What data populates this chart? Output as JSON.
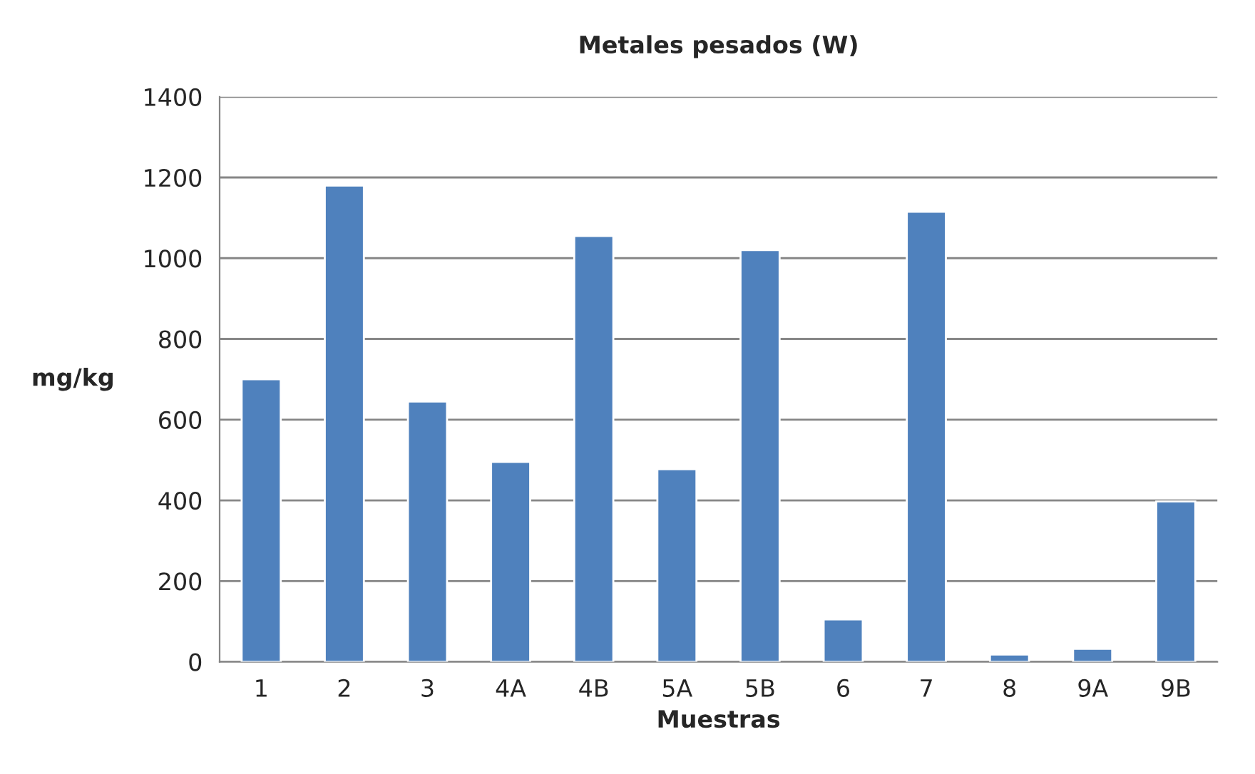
{
  "chart_data": {
    "type": "bar",
    "title": "Metales pesados (W)",
    "xlabel": "Muestras",
    "ylabel": "mg/kg",
    "categories": [
      "1",
      "2",
      "3",
      "4A",
      "4B",
      "5A",
      "5B",
      "6",
      "7",
      "8",
      "9A",
      "9B"
    ],
    "values": [
      700,
      1180,
      645,
      495,
      1055,
      477,
      1020,
      105,
      1115,
      18,
      32,
      397
    ],
    "color": "#4f81bd",
    "ylim": [
      0,
      1400
    ],
    "yticks": [
      0,
      200,
      400,
      600,
      800,
      1000,
      1200,
      1400
    ],
    "grid": "y",
    "legend": false
  }
}
